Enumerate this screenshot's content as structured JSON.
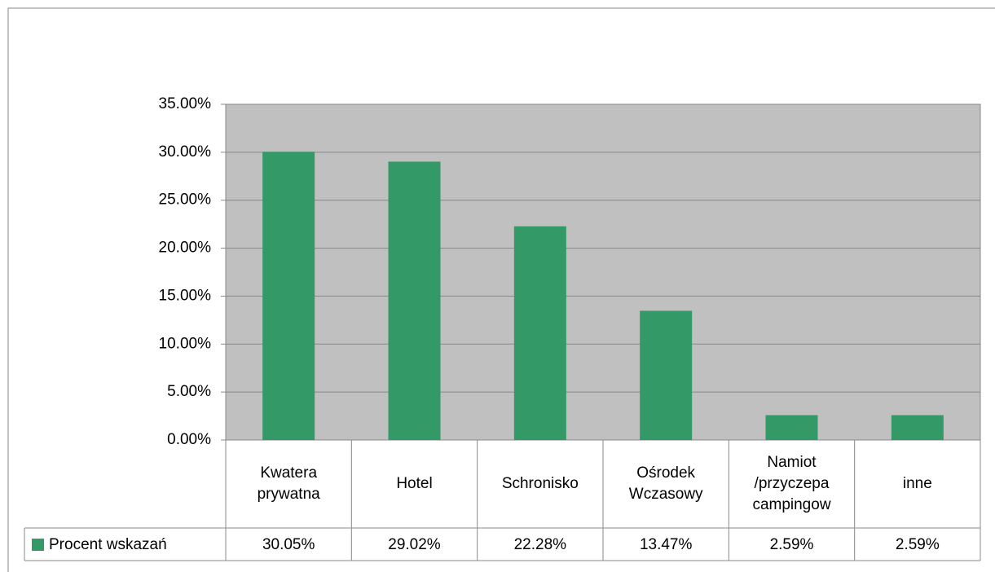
{
  "chart_data": {
    "type": "bar",
    "categories": [
      "Kwatera prywatna",
      "Hotel",
      "Schronisko",
      "Ośrodek Wczasowy",
      "Namiot /przyczepa campingow",
      "inne"
    ],
    "series": [
      {
        "name": "Procent wskazań",
        "color": "#339966",
        "values": [
          30.05,
          29.02,
          22.28,
          13.47,
          2.59,
          2.59
        ],
        "value_labels": [
          "30.05%",
          "29.02%",
          "22.28%",
          "13.47%",
          "2.59%",
          "2.59%"
        ]
      }
    ],
    "ylim": [
      0,
      35
    ],
    "yticks": [
      {
        "value": 0,
        "label": "0.00%"
      },
      {
        "value": 5,
        "label": "5.00%"
      },
      {
        "value": 10,
        "label": "10.00%"
      },
      {
        "value": 15,
        "label": "15.00%"
      },
      {
        "value": 20,
        "label": "20.00%"
      },
      {
        "value": 25,
        "label": "25.00%"
      },
      {
        "value": 30,
        "label": "30.00%"
      },
      {
        "value": 35,
        "label": "35.00%"
      }
    ],
    "grid": true,
    "plot_background": "#c0c0c0"
  }
}
